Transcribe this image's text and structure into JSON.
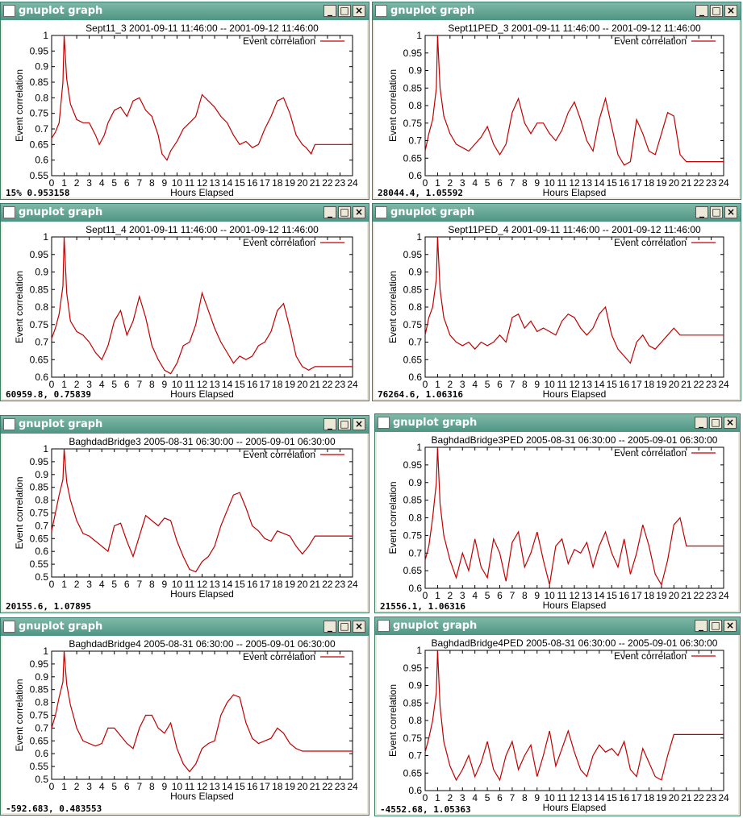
{
  "window_title": "gnuplot graph",
  "legend_label": "Event correlation",
  "colors": {
    "line": "#c00000",
    "title_bar": "#5a9d8c"
  },
  "windows": [
    {
      "title": "gnuplot graph",
      "status": "15%  0.953158",
      "chart_data": {
        "type": "line",
        "title": "Sept11_3 2001-09-11 11:46:00 -- 2001-09-12 11:46:00",
        "xlabel": "Hours Elapsed",
        "ylabel": "Event correlation",
        "xlim": [
          0,
          24
        ],
        "ylim": [
          0.55,
          1
        ],
        "x": [
          0,
          0.3,
          0.6,
          0.9,
          1.0,
          1.2,
          1.5,
          2,
          2.5,
          3,
          3.5,
          3.8,
          4.2,
          4.5,
          5,
          5.5,
          6,
          6.5,
          7,
          7.5,
          8,
          8.5,
          8.8,
          9.2,
          9.5,
          10,
          10.5,
          11,
          11.5,
          12,
          12.5,
          13,
          13.5,
          14,
          14.5,
          15,
          15.5,
          16,
          16.5,
          17,
          17.5,
          18,
          18.5,
          19,
          19.5,
          20,
          20.3,
          20.7,
          21,
          22,
          23,
          24
        ],
        "y": [
          0.67,
          0.69,
          0.72,
          0.85,
          1.0,
          0.86,
          0.78,
          0.73,
          0.72,
          0.72,
          0.68,
          0.65,
          0.68,
          0.72,
          0.76,
          0.77,
          0.74,
          0.79,
          0.8,
          0.76,
          0.74,
          0.68,
          0.62,
          0.6,
          0.63,
          0.66,
          0.7,
          0.72,
          0.74,
          0.81,
          0.79,
          0.77,
          0.74,
          0.72,
          0.68,
          0.65,
          0.66,
          0.64,
          0.65,
          0.7,
          0.74,
          0.79,
          0.8,
          0.75,
          0.68,
          0.65,
          0.64,
          0.62,
          0.65,
          0.65,
          0.65,
          0.65
        ]
      }
    },
    {
      "title": "gnuplot graph",
      "status": "28044.4,  1.05592",
      "chart_data": {
        "type": "line",
        "title": "Sept11PED_3 2001-09-11 11:46:00 -- 2001-09-12 11:46:00",
        "xlabel": "Hours Elapsed",
        "ylabel": "Event correlation",
        "xlim": [
          0,
          24
        ],
        "ylim": [
          0.6,
          1
        ],
        "x": [
          0,
          0.3,
          0.6,
          0.9,
          1.0,
          1.2,
          1.5,
          2,
          2.5,
          3,
          3.5,
          4,
          4.5,
          5,
          5.5,
          6,
          6.5,
          7,
          7.5,
          8,
          8.5,
          9,
          9.5,
          10,
          10.5,
          11,
          11.5,
          12,
          12.5,
          13,
          13.5,
          14,
          14.5,
          15,
          15.5,
          16,
          16.5,
          17,
          17.5,
          18,
          18.5,
          19,
          19.5,
          20,
          20.5,
          21,
          22,
          23,
          24
        ],
        "y": [
          0.67,
          0.72,
          0.76,
          0.85,
          1.0,
          0.85,
          0.77,
          0.72,
          0.69,
          0.68,
          0.67,
          0.69,
          0.71,
          0.74,
          0.69,
          0.66,
          0.69,
          0.78,
          0.82,
          0.75,
          0.72,
          0.75,
          0.75,
          0.72,
          0.7,
          0.73,
          0.78,
          0.81,
          0.76,
          0.7,
          0.67,
          0.76,
          0.82,
          0.74,
          0.66,
          0.63,
          0.64,
          0.76,
          0.72,
          0.67,
          0.66,
          0.72,
          0.78,
          0.77,
          0.66,
          0.64,
          0.64,
          0.64,
          0.64
        ]
      }
    },
    {
      "title": "gnuplot graph",
      "status": "60959.8, 0.75839",
      "chart_data": {
        "type": "line",
        "title": "Sept11_4 2001-09-11 11:46:00 -- 2001-09-12 11:46:00",
        "xlabel": "Hours Elapsed",
        "ylabel": "Event correlation",
        "xlim": [
          0,
          24
        ],
        "ylim": [
          0.6,
          1
        ],
        "x": [
          0,
          0.3,
          0.6,
          0.9,
          1.0,
          1.2,
          1.5,
          2,
          2.5,
          3,
          3.5,
          4,
          4.5,
          5,
          5.5,
          6,
          6.5,
          7,
          7.5,
          8,
          8.5,
          9,
          9.5,
          10,
          10.5,
          11,
          11.5,
          12,
          12.5,
          13,
          13.5,
          14,
          14.5,
          15,
          15.5,
          16,
          16.5,
          17,
          17.5,
          18,
          18.5,
          19,
          19.5,
          20,
          20.5,
          21,
          22,
          23,
          24
        ],
        "y": [
          0.71,
          0.74,
          0.78,
          0.86,
          1.0,
          0.84,
          0.76,
          0.73,
          0.72,
          0.7,
          0.67,
          0.65,
          0.69,
          0.76,
          0.79,
          0.72,
          0.76,
          0.83,
          0.77,
          0.69,
          0.65,
          0.62,
          0.61,
          0.64,
          0.69,
          0.7,
          0.75,
          0.84,
          0.79,
          0.74,
          0.7,
          0.67,
          0.64,
          0.66,
          0.65,
          0.66,
          0.69,
          0.7,
          0.73,
          0.79,
          0.81,
          0.74,
          0.66,
          0.63,
          0.62,
          0.63,
          0.63,
          0.63,
          0.63
        ]
      }
    },
    {
      "title": "gnuplot graph",
      "status": "76264.6,  1.06316",
      "chart_data": {
        "type": "line",
        "title": "Sept11PED_4 2001-09-11 11:46:00 -- 2001-09-12 11:46:00",
        "xlabel": "Hours Elapsed",
        "ylabel": "Event correlation",
        "xlim": [
          0,
          24
        ],
        "ylim": [
          0.6,
          1
        ],
        "x": [
          0,
          0.3,
          0.6,
          0.9,
          1.0,
          1.2,
          1.5,
          2,
          2.5,
          3,
          3.5,
          4,
          4.5,
          5,
          5.5,
          6,
          6.5,
          7,
          7.5,
          8,
          8.5,
          9,
          9.5,
          10,
          10.5,
          11,
          11.5,
          12,
          12.5,
          13,
          13.5,
          14,
          14.5,
          15,
          15.5,
          16,
          16.5,
          17,
          17.5,
          18,
          18.5,
          19,
          19.5,
          20,
          20.5,
          21,
          22,
          23,
          24
        ],
        "y": [
          0.72,
          0.77,
          0.8,
          0.88,
          1.0,
          0.85,
          0.77,
          0.72,
          0.7,
          0.69,
          0.7,
          0.68,
          0.7,
          0.69,
          0.7,
          0.72,
          0.7,
          0.77,
          0.78,
          0.74,
          0.76,
          0.73,
          0.74,
          0.73,
          0.72,
          0.76,
          0.78,
          0.77,
          0.74,
          0.72,
          0.74,
          0.78,
          0.8,
          0.72,
          0.68,
          0.66,
          0.64,
          0.7,
          0.72,
          0.69,
          0.68,
          0.7,
          0.72,
          0.74,
          0.72,
          0.72,
          0.72,
          0.72,
          0.72
        ]
      }
    },
    {
      "title": "gnuplot graph",
      "status": "20155.6,  1.07895",
      "chart_data": {
        "type": "line",
        "title": "BaghdadBridge3 2005-08-31 06:30:00 -- 2005-09-01 06:30:00",
        "xlabel": "Hours Elapsed",
        "ylabel": "Event correlation",
        "xlim": [
          0,
          24
        ],
        "ylim": [
          0.5,
          1
        ],
        "x": [
          0,
          0.3,
          0.6,
          0.9,
          1.0,
          1.2,
          1.5,
          2,
          2.5,
          3,
          3.5,
          4,
          4.5,
          5,
          5.5,
          6,
          6.5,
          7,
          7.5,
          8,
          8.5,
          9,
          9.5,
          10,
          10.5,
          11,
          11.5,
          12,
          12.5,
          13,
          13.5,
          14,
          14.5,
          15,
          15.5,
          16,
          16.5,
          17,
          17.5,
          18,
          18.5,
          19,
          19.5,
          20,
          20.5,
          21,
          22,
          23,
          24
        ],
        "y": [
          0.68,
          0.75,
          0.82,
          0.88,
          1.0,
          0.87,
          0.8,
          0.72,
          0.67,
          0.66,
          0.64,
          0.62,
          0.6,
          0.7,
          0.71,
          0.64,
          0.58,
          0.66,
          0.74,
          0.72,
          0.7,
          0.73,
          0.72,
          0.64,
          0.58,
          0.53,
          0.52,
          0.56,
          0.58,
          0.62,
          0.7,
          0.76,
          0.82,
          0.83,
          0.77,
          0.7,
          0.68,
          0.65,
          0.64,
          0.68,
          0.67,
          0.66,
          0.62,
          0.59,
          0.62,
          0.66,
          0.66,
          0.66,
          0.66
        ]
      }
    },
    {
      "title": "gnuplot graph",
      "status": "21556.1,  1.06316",
      "chart_data": {
        "type": "line",
        "title": "BaghdadBridge3PED 2005-08-31 06:30:00 -- 2005-09-01 06:30:00",
        "xlabel": "Hours Elapsed",
        "ylabel": "Event correlation",
        "xlim": [
          0,
          24
        ],
        "ylim": [
          0.6,
          1
        ],
        "x": [
          0,
          0.3,
          0.6,
          0.9,
          1.0,
          1.2,
          1.5,
          2,
          2.5,
          3,
          3.5,
          4,
          4.5,
          5,
          5.5,
          6,
          6.5,
          7,
          7.5,
          8,
          8.5,
          9,
          9.5,
          10,
          10.5,
          11,
          11.5,
          12,
          12.5,
          13,
          13.5,
          14,
          14.5,
          15,
          15.5,
          16,
          16.5,
          17,
          17.5,
          18,
          18.5,
          19,
          19.5,
          20,
          20.5,
          21,
          22,
          23,
          24
        ],
        "y": [
          0.68,
          0.72,
          0.8,
          0.9,
          1.0,
          0.84,
          0.75,
          0.68,
          0.63,
          0.7,
          0.65,
          0.74,
          0.66,
          0.63,
          0.74,
          0.7,
          0.62,
          0.73,
          0.76,
          0.66,
          0.7,
          0.76,
          0.68,
          0.61,
          0.72,
          0.74,
          0.67,
          0.71,
          0.7,
          0.73,
          0.66,
          0.72,
          0.76,
          0.7,
          0.66,
          0.74,
          0.64,
          0.7,
          0.78,
          0.72,
          0.64,
          0.61,
          0.68,
          0.78,
          0.8,
          0.72,
          0.72,
          0.72,
          0.72
        ]
      }
    },
    {
      "title": "gnuplot graph",
      "status": "-592.683,  0.483553",
      "chart_data": {
        "type": "line",
        "title": "BaghdadBridge4 2005-08-31 06:30:00 -- 2005-09-01 06:30:00",
        "xlabel": "Hours Elapsed",
        "ylabel": "Event correlation",
        "xlim": [
          0,
          24
        ],
        "ylim": [
          0.5,
          1
        ],
        "x": [
          0,
          0.3,
          0.6,
          0.9,
          1.0,
          1.2,
          1.5,
          2,
          2.5,
          3,
          3.5,
          4,
          4.5,
          5,
          5.5,
          6,
          6.5,
          7,
          7.5,
          8,
          8.5,
          9,
          9.5,
          10,
          10.5,
          11,
          11.5,
          12,
          12.5,
          13,
          13.5,
          14,
          14.5,
          15,
          15.5,
          16,
          16.5,
          17,
          17.5,
          18,
          18.5,
          19,
          19.5,
          20,
          20.5,
          21,
          22,
          23,
          24
        ],
        "y": [
          0.7,
          0.75,
          0.82,
          0.88,
          1.0,
          0.87,
          0.79,
          0.7,
          0.65,
          0.64,
          0.63,
          0.64,
          0.7,
          0.7,
          0.67,
          0.64,
          0.62,
          0.7,
          0.75,
          0.75,
          0.7,
          0.68,
          0.72,
          0.62,
          0.56,
          0.53,
          0.56,
          0.62,
          0.64,
          0.65,
          0.75,
          0.8,
          0.83,
          0.82,
          0.72,
          0.66,
          0.64,
          0.65,
          0.66,
          0.7,
          0.68,
          0.64,
          0.62,
          0.61,
          0.61,
          0.61,
          0.61,
          0.61,
          0.61
        ]
      }
    },
    {
      "title": "gnuplot graph",
      "status": "-4552.68,  1.05363",
      "chart_data": {
        "type": "line",
        "title": "BaghdadBridge4PED 2005-08-31 06:30:00 -- 2005-09-01 06:30:00",
        "xlabel": "Hours Elapsed",
        "ylabel": "Event correlation",
        "xlim": [
          0,
          24
        ],
        "ylim": [
          0.6,
          1
        ],
        "x": [
          0,
          0.3,
          0.6,
          0.9,
          1.0,
          1.2,
          1.5,
          2,
          2.5,
          3,
          3.5,
          4,
          4.5,
          5,
          5.5,
          6,
          6.5,
          7,
          7.5,
          8,
          8.5,
          9,
          9.5,
          10,
          10.5,
          11,
          11.5,
          12,
          12.5,
          13,
          13.5,
          14,
          14.5,
          15,
          15.5,
          16,
          16.5,
          17,
          17.5,
          18,
          18.5,
          19,
          19.5,
          20,
          20.5,
          21,
          22,
          23,
          24
        ],
        "y": [
          0.71,
          0.75,
          0.8,
          0.88,
          1.0,
          0.84,
          0.74,
          0.67,
          0.63,
          0.66,
          0.7,
          0.64,
          0.68,
          0.74,
          0.66,
          0.63,
          0.7,
          0.74,
          0.66,
          0.7,
          0.73,
          0.64,
          0.7,
          0.77,
          0.67,
          0.72,
          0.77,
          0.71,
          0.66,
          0.64,
          0.7,
          0.73,
          0.71,
          0.72,
          0.7,
          0.74,
          0.66,
          0.64,
          0.72,
          0.68,
          0.64,
          0.63,
          0.7,
          0.76,
          0.76,
          0.76,
          0.76,
          0.76,
          0.76
        ]
      }
    }
  ]
}
